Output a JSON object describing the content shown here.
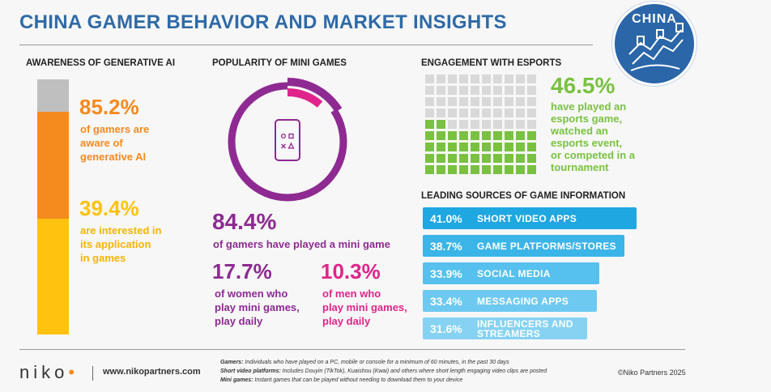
{
  "title": "CHINA GAMER BEHAVIOR AND MARKET INSIGHTS",
  "badge": "CHINA",
  "colors": {
    "title_blue": "#2f6aa6",
    "orange": "#f58a1f",
    "yellow": "#ffc20e",
    "purple": "#8e2a92",
    "magenta": "#e0248b",
    "green": "#7ac142",
    "sky": "#1fa7e1",
    "grey": "#d9d9d9"
  },
  "ai": {
    "heading": "AWARENESS OF GENERATIVE AI",
    "aware_pct": "85.2%",
    "aware_text": [
      "of gamers are",
      "aware of",
      "generative AI"
    ],
    "interest_pct": "39.4%",
    "interest_text": [
      "are interested in",
      "its application",
      "in games"
    ]
  },
  "mini": {
    "heading": "POPULARITY OF MINI GAMES",
    "played_pct": "84.4%",
    "played_text": "of gamers have played a mini game",
    "women_pct": "17.7%",
    "women_text": [
      "of women who",
      "play mini games,",
      "play daily"
    ],
    "men_pct": "10.3%",
    "men_text": [
      "of men who",
      "play mini games,",
      "play daily"
    ]
  },
  "esports": {
    "heading": "ENGAGEMENT WITH ESPORTS",
    "pct": "46.5%",
    "text": [
      "have played an",
      "esports game,",
      "watched an",
      "esports event,",
      "or competed in a",
      "tournament"
    ]
  },
  "sources": {
    "heading": "LEADING SOURCES OF GAME INFORMATION",
    "items": [
      {
        "pct": "41.0%",
        "label": [
          "SHORT VIDEO APPS"
        ],
        "color": "#1fa7e1"
      },
      {
        "pct": "38.7%",
        "label": [
          "GAME PLATFORMS/STORES"
        ],
        "color": "#3bb4e8"
      },
      {
        "pct": "33.9%",
        "label": [
          "SOCIAL MEDIA"
        ],
        "color": "#56c0ee"
      },
      {
        "pct": "33.4%",
        "label": [
          "MESSAGING APPS"
        ],
        "color": "#6ec9f1"
      },
      {
        "pct": "31.6%",
        "label": [
          "INFLUENCERS AND",
          "STREAMERS"
        ],
        "color": "#86d2f3"
      }
    ]
  },
  "chart_data": [
    {
      "type": "bar",
      "title": "AWARENESS OF GENERATIVE AI",
      "categories": [
        "aware of generative AI",
        "interested in its application in games"
      ],
      "values": [
        85.2,
        39.4
      ],
      "ylim": [
        0,
        100
      ]
    },
    {
      "type": "pie",
      "title": "POPULARITY OF MINI GAMES",
      "categories": [
        "have played a mini game",
        "women who play daily",
        "men who play daily"
      ],
      "values": [
        84.4,
        17.7,
        10.3
      ]
    },
    {
      "type": "bar",
      "title": "ENGAGEMENT WITH ESPORTS",
      "categories": [
        "engaged with esports"
      ],
      "values": [
        46.5
      ],
      "ylim": [
        0,
        100
      ]
    },
    {
      "type": "bar",
      "title": "LEADING SOURCES OF GAME INFORMATION",
      "categories": [
        "SHORT VIDEO APPS",
        "GAME PLATFORMS/STORES",
        "SOCIAL MEDIA",
        "MESSAGING APPS",
        "INFLUENCERS AND STREAMERS"
      ],
      "values": [
        41.0,
        38.7,
        33.9,
        33.4,
        31.6
      ]
    }
  ],
  "footer": {
    "logo": "niko",
    "logo_dot": "•",
    "site": "www.nikopartners.com",
    "notes": [
      {
        "term": "Gamers:",
        "text": " Individuals who have played on a PC, mobile or console for a minimum of 60 minutes, in the past 30 days"
      },
      {
        "term": "Short video platforms:",
        "text": " Includes Douyin (TikTok), Kuaishou (Kwai) and others where short length engaging video clips are posted"
      },
      {
        "term": "Mini games:",
        "text": " Instant games that can be played without needing to download them to your device"
      }
    ],
    "copyright": "©Niko Partners 2025"
  }
}
